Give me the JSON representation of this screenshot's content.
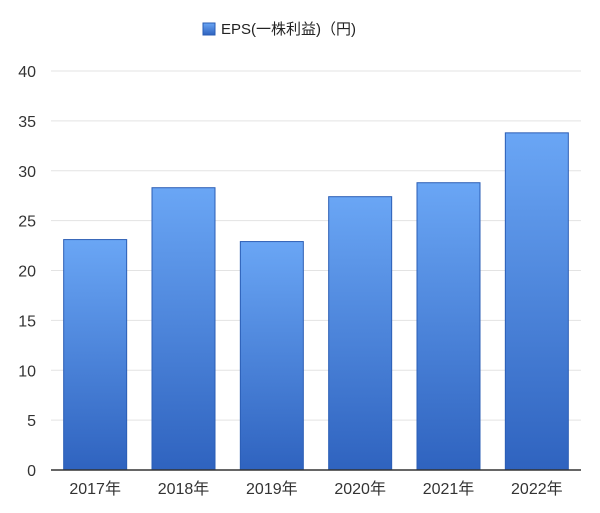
{
  "chart_data": {
    "type": "bar",
    "categories": [
      "2017年",
      "2018年",
      "2019年",
      "2020年",
      "2021年",
      "2022年"
    ],
    "series": [
      {
        "name": "EPS(一株利益)（円)",
        "values": [
          23.1,
          28.3,
          22.9,
          27.4,
          28.8,
          33.8
        ]
      }
    ],
    "title": "",
    "xlabel": "",
    "ylabel": "",
    "ylim": [
      0,
      40
    ],
    "yticks": [
      0,
      5,
      10,
      15,
      20,
      25,
      30,
      35,
      40
    ],
    "grid": true,
    "legend_position": "top-center",
    "colors": {
      "bar_top": "#6aa6f5",
      "bar_bottom": "#2f63bf",
      "bar_edge": "#2a5db5",
      "grid": "#e3e3e3",
      "axis": "#333333"
    }
  }
}
